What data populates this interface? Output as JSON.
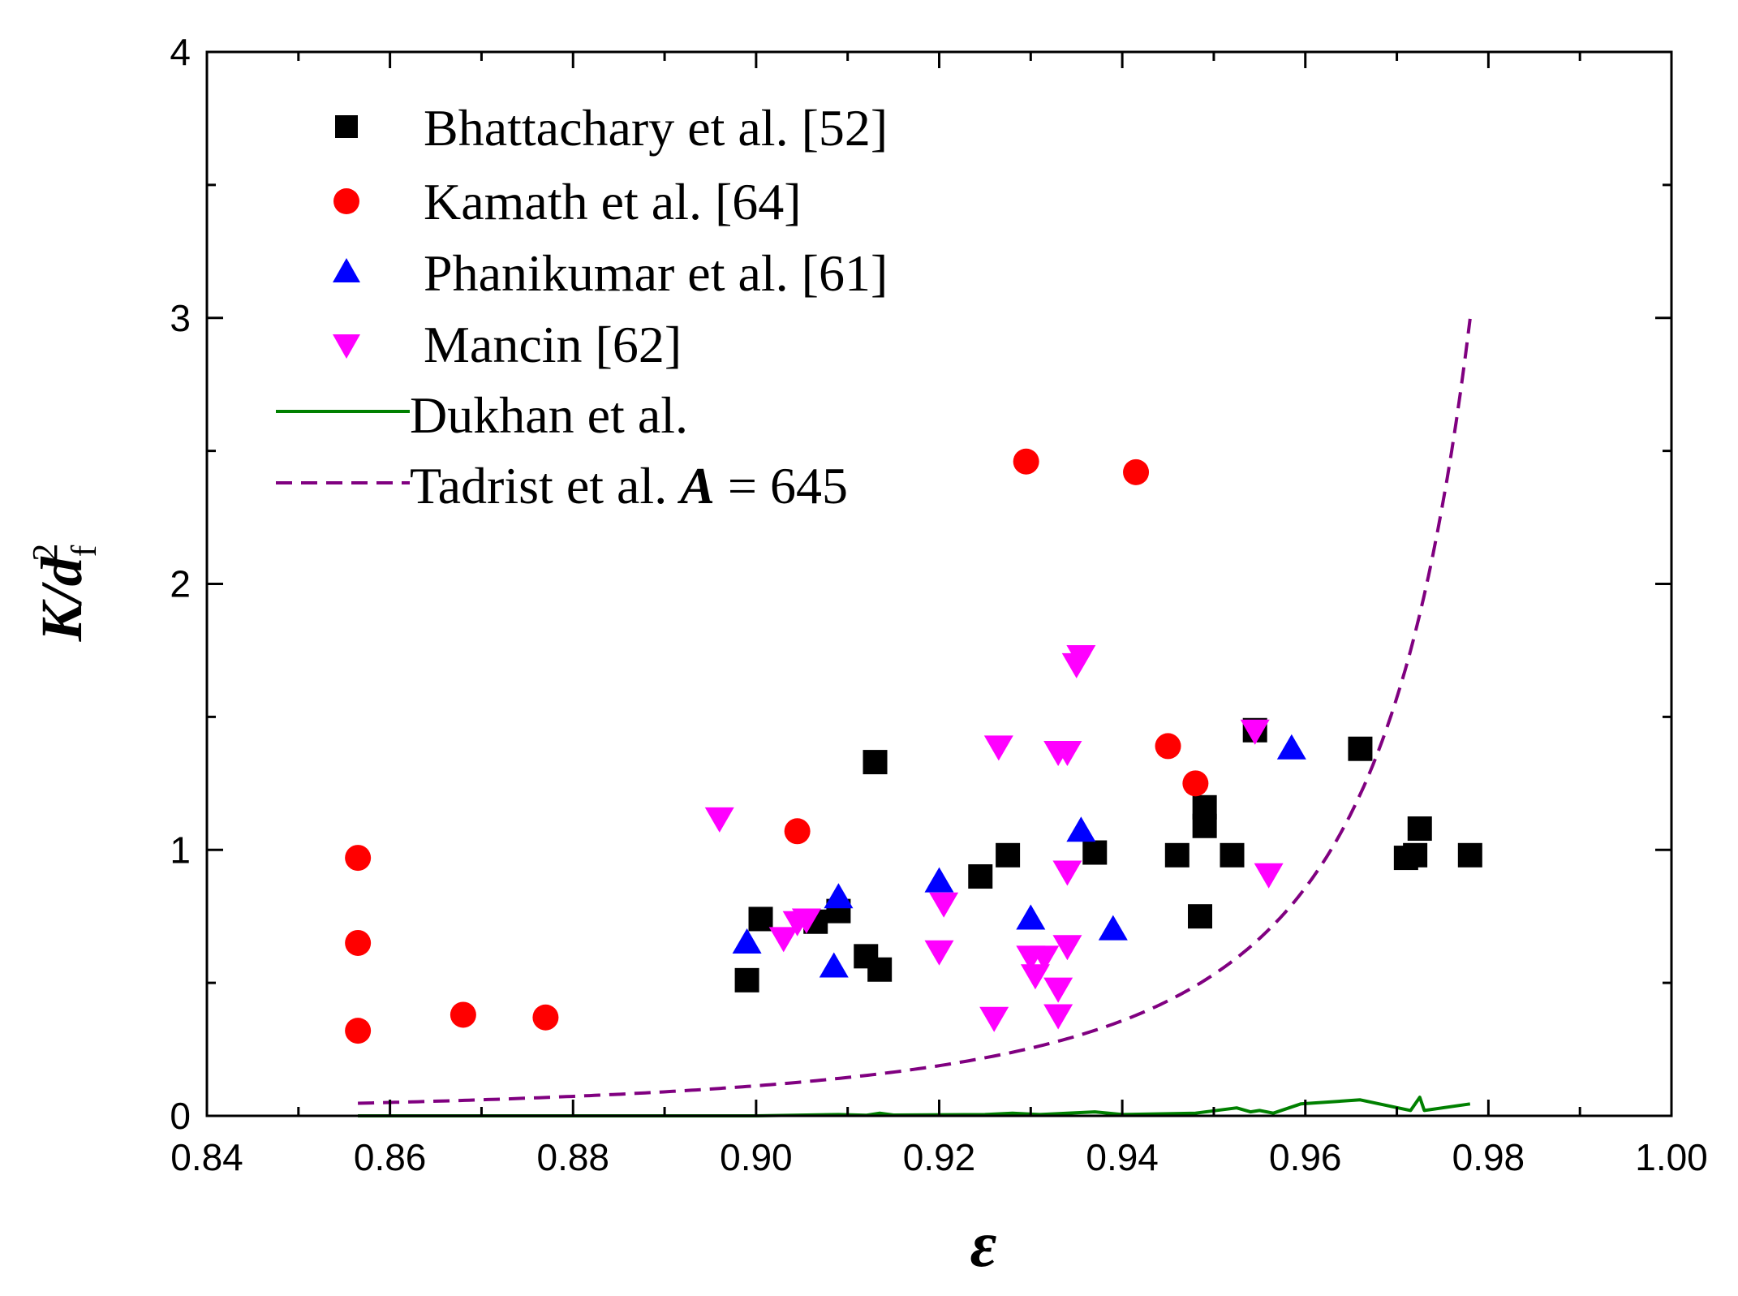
{
  "chart_data": {
    "type": "scatter",
    "title": "",
    "xlabel": "ε",
    "ylabel_parts": {
      "main": "K/d",
      "sub": "f",
      "sup": "2"
    },
    "xlim": [
      0.84,
      1.0
    ],
    "ylim": [
      0,
      4
    ],
    "x_ticks": [
      0.84,
      0.86,
      0.88,
      0.9,
      0.92,
      0.94,
      0.96,
      0.98,
      1.0
    ],
    "x_tick_labels": [
      "0.84",
      "0.86",
      "0.88",
      "0.90",
      "0.92",
      "0.94",
      "0.96",
      "0.98",
      "1.00"
    ],
    "y_ticks": [
      0,
      1,
      2,
      3,
      4
    ],
    "y_tick_labels": [
      "0",
      "1",
      "2",
      "3",
      "4"
    ],
    "legend_position": "top-left",
    "series": [
      {
        "name": "Bhattachary et al. [52]",
        "marker": "square",
        "color": "#000000",
        "points": [
          [
            0.899,
            0.51
          ],
          [
            0.9005,
            0.74
          ],
          [
            0.9065,
            0.73
          ],
          [
            0.909,
            0.77
          ],
          [
            0.912,
            0.6
          ],
          [
            0.9135,
            0.55
          ],
          [
            0.913,
            1.33
          ],
          [
            0.9245,
            0.9
          ],
          [
            0.9275,
            0.98
          ],
          [
            0.937,
            0.99
          ],
          [
            0.946,
            0.98
          ],
          [
            0.9485,
            0.75
          ],
          [
            0.949,
            1.09
          ],
          [
            0.949,
            1.16
          ],
          [
            0.952,
            0.98
          ],
          [
            0.9545,
            1.45
          ],
          [
            0.966,
            1.38
          ],
          [
            0.971,
            0.97
          ],
          [
            0.972,
            0.98
          ],
          [
            0.9725,
            1.08
          ],
          [
            0.978,
            0.98
          ]
        ]
      },
      {
        "name": "Kamath et al. [64]",
        "marker": "circle",
        "color": "#ff0000",
        "points": [
          [
            0.8565,
            0.97
          ],
          [
            0.8565,
            0.65
          ],
          [
            0.8565,
            0.32
          ],
          [
            0.868,
            0.38
          ],
          [
            0.877,
            0.37
          ],
          [
            0.9045,
            1.07
          ],
          [
            0.9295,
            2.46
          ],
          [
            0.9415,
            2.42
          ],
          [
            0.945,
            1.39
          ],
          [
            0.948,
            1.25
          ]
        ]
      },
      {
        "name": "Phanikumar et al. [61]",
        "marker": "triangle-up",
        "color": "#0000ff",
        "points": [
          [
            0.899,
            0.65
          ],
          [
            0.9085,
            0.56
          ],
          [
            0.909,
            0.82
          ],
          [
            0.92,
            0.88
          ],
          [
            0.93,
            0.74
          ],
          [
            0.9355,
            1.07
          ],
          [
            0.939,
            0.7
          ],
          [
            0.9585,
            1.38
          ]
        ]
      },
      {
        "name": "Mancin [62]",
        "marker": "triangle-down",
        "color": "#ff00ff",
        "points": [
          [
            0.896,
            1.12
          ],
          [
            0.903,
            0.67
          ],
          [
            0.9045,
            0.73
          ],
          [
            0.9055,
            0.74
          ],
          [
            0.92,
            0.62
          ],
          [
            0.9205,
            0.8
          ],
          [
            0.926,
            0.37
          ],
          [
            0.9265,
            1.39
          ],
          [
            0.93,
            0.6
          ],
          [
            0.9305,
            0.53
          ],
          [
            0.9315,
            0.6
          ],
          [
            0.933,
            0.48
          ],
          [
            0.933,
            0.38
          ],
          [
            0.933,
            1.37
          ],
          [
            0.934,
            1.37
          ],
          [
            0.934,
            0.64
          ],
          [
            0.934,
            0.92
          ],
          [
            0.935,
            1.7
          ],
          [
            0.9355,
            1.73
          ],
          [
            0.9545,
            1.45
          ],
          [
            0.956,
            0.91
          ]
        ]
      }
    ],
    "lines": [
      {
        "name": "Dukhan et al.",
        "style": "solid",
        "color": "#008000",
        "points": [
          [
            0.8565,
            0.0
          ],
          [
            0.88,
            0.0
          ],
          [
            0.9,
            0.0
          ],
          [
            0.909,
            0.005
          ],
          [
            0.912,
            0.002
          ],
          [
            0.9135,
            0.01
          ],
          [
            0.915,
            0.003
          ],
          [
            0.925,
            0.005
          ],
          [
            0.928,
            0.01
          ],
          [
            0.931,
            0.005
          ],
          [
            0.934,
            0.01
          ],
          [
            0.937,
            0.015
          ],
          [
            0.94,
            0.005
          ],
          [
            0.948,
            0.01
          ],
          [
            0.9525,
            0.03
          ],
          [
            0.954,
            0.015
          ],
          [
            0.955,
            0.02
          ],
          [
            0.9565,
            0.01
          ],
          [
            0.9595,
            0.045
          ],
          [
            0.966,
            0.06
          ],
          [
            0.9715,
            0.02
          ],
          [
            0.9725,
            0.07
          ],
          [
            0.973,
            0.02
          ],
          [
            0.978,
            0.045
          ]
        ]
      },
      {
        "name": "Tadrist et al. A = 645",
        "style": "dashed",
        "color": "#800080",
        "formula": "K/d_f^2 = eps^3 / (645 * (1 - eps)^2)",
        "x_start": 0.8565,
        "x_end": 0.978
      }
    ]
  },
  "legend": {
    "entries": [
      {
        "label": "Bhattachary et al. [52]"
      },
      {
        "label": "Kamath et al. [64]"
      },
      {
        "label": "Phanikumar et al. [61]"
      },
      {
        "label": "Mancin [62]"
      },
      {
        "label": "Dukhan et al."
      },
      {
        "label_prefix": "Tadrist et al. ",
        "label_italic": "A",
        "label_suffix": " = 645"
      }
    ]
  }
}
